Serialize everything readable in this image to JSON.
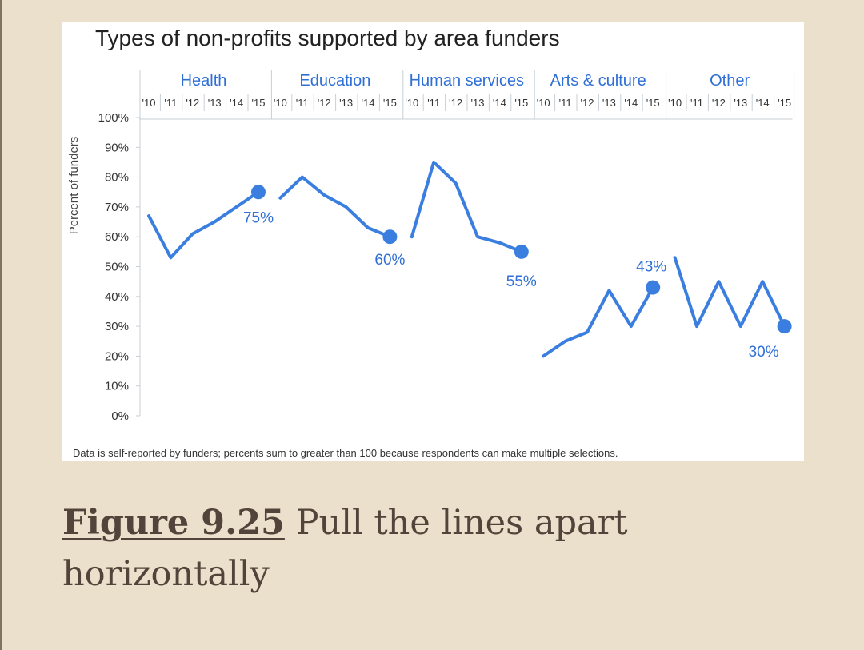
{
  "colors": {
    "background": "#ebe0cb",
    "panel": "#ffffff",
    "line": "#3a7fe0",
    "axis_text": "#333333",
    "category_text": "#2f6fd6",
    "grid": "#c9cfd6",
    "caption": "#52443a"
  },
  "caption": {
    "label": "Figure 9.25",
    "text": "Pull the lines apart horizontally"
  },
  "chart_data": {
    "type": "line",
    "title": "Types of non-profits supported by area funders",
    "ylabel": "Percent of funders",
    "xlabel": "",
    "ylim": [
      0,
      100
    ],
    "yticks": [
      "0%",
      "10%",
      "20%",
      "30%",
      "40%",
      "50%",
      "60%",
      "70%",
      "80%",
      "90%",
      "100%"
    ],
    "years": [
      "'10",
      "'11",
      "'12",
      "'13",
      "'14",
      "'15"
    ],
    "footnote": "Data is self-reported by funders; percents sum to greater than 100 because respondents can make multiple selections.",
    "series": [
      {
        "name": "Health",
        "values": [
          67,
          53,
          61,
          65,
          70,
          75
        ],
        "end_label": "75%"
      },
      {
        "name": "Education",
        "values": [
          73,
          80,
          74,
          70,
          63,
          60
        ],
        "end_label": "60%"
      },
      {
        "name": "Human services",
        "values": [
          60,
          85,
          78,
          60,
          58,
          55
        ],
        "end_label": "55%"
      },
      {
        "name": "Arts & culture",
        "values": [
          20,
          25,
          28,
          42,
          30,
          43
        ],
        "end_label": "43%"
      },
      {
        "name": "Other",
        "values": [
          53,
          30,
          45,
          30,
          45,
          30
        ],
        "end_label": "30%"
      }
    ]
  }
}
